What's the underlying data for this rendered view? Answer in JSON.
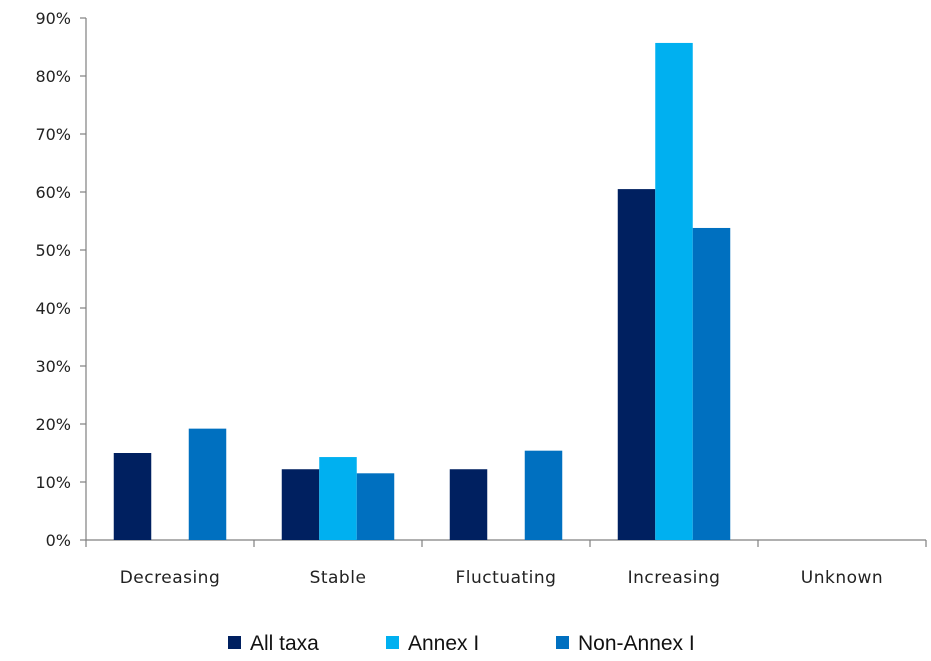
{
  "chart_data": {
    "type": "bar",
    "categories": [
      "Decreasing",
      "Stable",
      "Fluctuating",
      "Increasing",
      "Unknown"
    ],
    "series": [
      {
        "name": "All taxa",
        "color": "#002060",
        "values": [
          15,
          12.2,
          12.2,
          60.5,
          0
        ]
      },
      {
        "name": "Annex I",
        "color": "#00B0F0",
        "values": [
          0,
          14.3,
          0,
          85.7,
          0
        ]
      },
      {
        "name": "Non-Annex I",
        "color": "#0070C0",
        "values": [
          19.2,
          11.5,
          15.4,
          53.8,
          0
        ]
      }
    ],
    "yticks": [
      "0%",
      "10%",
      "20%",
      "30%",
      "40%",
      "50%",
      "60%",
      "70%",
      "80%",
      "90%"
    ],
    "ylim": [
      0,
      90
    ],
    "title": "",
    "xlabel": "",
    "ylabel": "",
    "grid": false,
    "legend_position": "bottom"
  }
}
